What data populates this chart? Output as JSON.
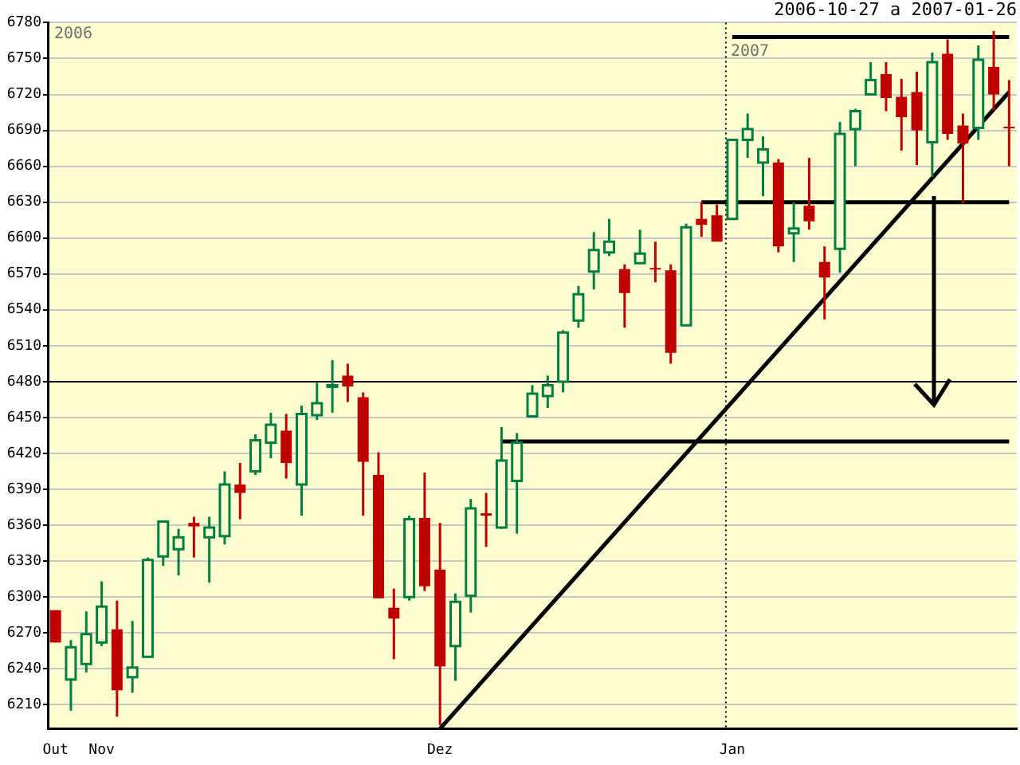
{
  "chart_data": {
    "type": "candlestick",
    "subtitle": "2006-10-27 a 2007-01-26",
    "categories": [
      "Out",
      null,
      null,
      "Nov",
      null,
      null,
      null,
      null,
      null,
      null,
      null,
      null,
      null,
      null,
      null,
      null,
      null,
      null,
      null,
      null,
      null,
      null,
      null,
      null,
      null,
      "Dez",
      null,
      null,
      null,
      null,
      null,
      null,
      null,
      null,
      null,
      null,
      null,
      null,
      null,
      null,
      null,
      null,
      null,
      null,
      "Jan",
      null,
      null,
      null,
      null,
      null,
      null,
      null,
      null,
      null,
      null,
      null,
      null,
      null,
      null,
      null,
      null,
      null,
      null
    ],
    "ohlc": [
      [
        6289,
        6289,
        6262,
        6262
      ],
      [
        6231,
        6264,
        6205,
        6258
      ],
      [
        6244,
        6288,
        6237,
        6269
      ],
      [
        6262,
        6313,
        6259,
        6292
      ],
      [
        6273,
        6297,
        6200,
        6222
      ],
      [
        6233,
        6280,
        6220,
        6241
      ],
      [
        6250,
        6333,
        6250,
        6331
      ],
      [
        6334,
        6363,
        6326,
        6363
      ],
      [
        6340,
        6357,
        6318,
        6350
      ],
      [
        6362,
        6367,
        6333,
        6359
      ],
      [
        6350,
        6367,
        6312,
        6358
      ],
      [
        6351,
        6405,
        6344,
        6394
      ],
      [
        6394,
        6412,
        6365,
        6387
      ],
      [
        6405,
        6436,
        6402,
        6431
      ],
      [
        6429,
        6454,
        6416,
        6444
      ],
      [
        6439,
        6453,
        6399,
        6412
      ],
      [
        6394,
        6460,
        6368,
        6453
      ],
      [
        6452,
        6479,
        6448,
        6462
      ],
      [
        6476,
        6498,
        6454,
        6477
      ],
      [
        6485,
        6495,
        6463,
        6476
      ],
      [
        6467,
        6471,
        6368,
        6413
      ],
      [
        6402,
        6421,
        6299,
        6299
      ],
      [
        6291,
        6307,
        6248,
        6282
      ],
      [
        6300,
        6368,
        6297,
        6365
      ],
      [
        6366,
        6404,
        6305,
        6309
      ],
      [
        6323,
        6362,
        6193,
        6242
      ],
      [
        6259,
        6303,
        6230,
        6296
      ],
      [
        6301,
        6382,
        6287,
        6374
      ],
      [
        6370,
        6387,
        6342,
        6368
      ],
      [
        6358,
        6442,
        6357,
        6414
      ],
      [
        6397,
        6437,
        6353,
        6429
      ],
      [
        6451,
        6477,
        6451,
        6470
      ],
      [
        6468,
        6485,
        6458,
        6477
      ],
      [
        6480,
        6523,
        6471,
        6521
      ],
      [
        6531,
        6560,
        6525,
        6553
      ],
      [
        6572,
        6605,
        6557,
        6590
      ],
      [
        6588,
        6616,
        6585,
        6597
      ],
      [
        6574,
        6578,
        6525,
        6554
      ],
      [
        6579,
        6607,
        6579,
        6587
      ],
      [
        6575,
        6597,
        6563,
        6574
      ],
      [
        6573,
        6578,
        6495,
        6504
      ],
      [
        6527,
        6612,
        6527,
        6609
      ],
      [
        6616,
        6630,
        6601,
        6611
      ],
      [
        6619,
        6628,
        6597,
        6597
      ],
      [
        6616,
        6682,
        6616,
        6682
      ],
      [
        6682,
        6704,
        6667,
        6691
      ],
      [
        6663,
        6685,
        6635,
        6674
      ],
      [
        6663,
        6666,
        6588,
        6593
      ],
      [
        6604,
        6630,
        6580,
        6608
      ],
      [
        6627,
        6667,
        6607,
        6614
      ],
      [
        6580,
        6593,
        6532,
        6567
      ],
      [
        6591,
        6697,
        6571,
        6687
      ],
      [
        6691,
        6708,
        6660,
        6706
      ],
      [
        6720,
        6747,
        6720,
        6732
      ],
      [
        6737,
        6747,
        6706,
        6717
      ],
      [
        6718,
        6733,
        6673,
        6701
      ],
      [
        6722,
        6739,
        6661,
        6690
      ],
      [
        6680,
        6755,
        6651,
        6747
      ],
      [
        6754,
        6766,
        6682,
        6687
      ],
      [
        6694,
        6704,
        6629,
        6679
      ],
      [
        6692,
        6761,
        6682,
        6749
      ],
      [
        6743,
        6773,
        6707,
        6720
      ],
      [
        6693,
        6732,
        6660,
        6692
      ]
    ],
    "series": [
      {
        "type": "line",
        "color": "#000000",
        "values": [
          null,
          null,
          null,
          null,
          null,
          null,
          null,
          null,
          null,
          null,
          null,
          null,
          null,
          null,
          null,
          null,
          null,
          null,
          null,
          null,
          null,
          null,
          null,
          null,
          null,
          6190,
          null,
          null,
          null,
          null,
          null,
          null,
          null,
          null,
          null,
          null,
          null,
          null,
          null,
          null,
          null,
          null,
          null,
          null,
          null,
          null,
          null,
          null,
          null,
          null,
          null,
          null,
          null,
          null,
          null,
          null,
          null,
          null,
          null,
          null,
          null,
          null,
          6722
        ]
      },
      {
        "type": "line",
        "color": "#000000",
        "values": [
          null,
          null,
          null,
          null,
          null,
          null,
          null,
          null,
          null,
          null,
          null,
          null,
          null,
          null,
          null,
          null,
          null,
          null,
          null,
          null,
          null,
          null,
          null,
          null,
          null,
          null,
          null,
          null,
          null,
          6430,
          null,
          null,
          null,
          null,
          null,
          null,
          null,
          null,
          null,
          null,
          null,
          null,
          null,
          null,
          null,
          null,
          null,
          null,
          null,
          null,
          null,
          null,
          null,
          null,
          null,
          null,
          null,
          null,
          null,
          null,
          null,
          null,
          6430
        ]
      },
      {
        "type": "line",
        "color": "#000000",
        "values": [
          null,
          null,
          null,
          null,
          null,
          null,
          null,
          null,
          null,
          null,
          null,
          null,
          null,
          null,
          null,
          null,
          null,
          null,
          null,
          null,
          null,
          null,
          null,
          null,
          null,
          null,
          null,
          null,
          null,
          null,
          null,
          null,
          null,
          null,
          null,
          null,
          null,
          null,
          null,
          null,
          null,
          null,
          6630,
          null,
          null,
          null,
          null,
          null,
          null,
          null,
          null,
          null,
          null,
          null,
          null,
          null,
          null,
          null,
          null,
          null,
          null,
          null,
          6630
        ]
      },
      {
        "type": "line",
        "color": "#000000",
        "values": [
          null,
          null,
          null,
          null,
          null,
          null,
          null,
          null,
          null,
          null,
          null,
          null,
          null,
          null,
          null,
          null,
          null,
          null,
          null,
          null,
          null,
          null,
          null,
          null,
          null,
          null,
          null,
          null,
          null,
          null,
          null,
          null,
          null,
          null,
          null,
          null,
          null,
          null,
          null,
          null,
          null,
          null,
          null,
          null,
          6768,
          null,
          null,
          null,
          null,
          null,
          null,
          null,
          null,
          null,
          null,
          null,
          null,
          null,
          null,
          null,
          null,
          null,
          6768
        ]
      }
    ],
    "ylim": [
      6190,
      6780
    ],
    "yticks": [
      6210,
      6240,
      6270,
      6300,
      6330,
      6360,
      6390,
      6420,
      6450,
      6480,
      6510,
      6540,
      6570,
      6600,
      6630,
      6660,
      6690,
      6720,
      6750,
      6780
    ],
    "grid": "y",
    "marker": "none",
    "ref_lines": [
      {
        "axis": "y",
        "value": 6480,
        "color": "#000000"
      },
      {
        "axis": "x",
        "value": "Jan",
        "color": "#000000",
        "line_style": "dotted",
        "label": "2007"
      }
    ],
    "annotations": [
      "2006"
    ]
  }
}
